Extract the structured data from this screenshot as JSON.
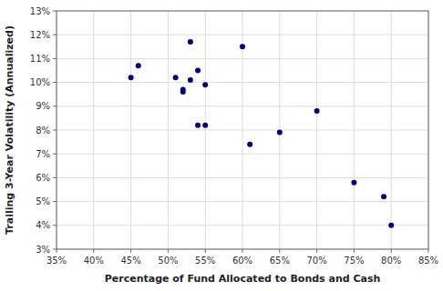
{
  "chart_data": {
    "type": "scatter",
    "xlabel": "Percentage of Fund Allocated to Bonds and Cash",
    "ylabel": "Trailing 3-Year Volatility (Annualized)",
    "color": "#000080",
    "x": [
      0.45,
      0.46,
      0.51,
      0.52,
      0.52,
      0.53,
      0.53,
      0.54,
      0.54,
      0.55,
      0.55,
      0.6,
      0.61,
      0.65,
      0.7,
      0.75,
      0.79,
      0.8
    ],
    "values": [
      0.102,
      0.107,
      0.102,
      0.096,
      0.097,
      0.101,
      0.117,
      0.105,
      0.082,
      0.082,
      0.099,
      0.115,
      0.074,
      0.079,
      0.088,
      0.058,
      0.052,
      0.04
    ],
    "xlim": [
      0.35,
      0.85
    ],
    "ylim": [
      0.03,
      0.13
    ],
    "xticks": [
      {
        "value": 0.35,
        "label": "35%"
      },
      {
        "value": 0.4,
        "label": "40%"
      },
      {
        "value": 0.45,
        "label": "45%"
      },
      {
        "value": 0.5,
        "label": "50%"
      },
      {
        "value": 0.55,
        "label": "55%"
      },
      {
        "value": 0.6,
        "label": "60%"
      },
      {
        "value": 0.65,
        "label": "65%"
      },
      {
        "value": 0.7,
        "label": "70%"
      },
      {
        "value": 0.75,
        "label": "75%"
      },
      {
        "value": 0.8,
        "label": "80%"
      },
      {
        "value": 0.85,
        "label": "85%"
      }
    ],
    "yticks": [
      {
        "value": 0.03,
        "label": "3%"
      },
      {
        "value": 0.04,
        "label": "4%"
      },
      {
        "value": 0.05,
        "label": "5%"
      },
      {
        "value": 0.06,
        "label": "6%"
      },
      {
        "value": 0.07,
        "label": "7%"
      },
      {
        "value": 0.08,
        "label": "8%"
      },
      {
        "value": 0.09,
        "label": "9%"
      },
      {
        "value": 0.1,
        "label": "10%"
      },
      {
        "value": 0.11,
        "label": "11%"
      },
      {
        "value": 0.12,
        "label": "12%"
      },
      {
        "value": 0.13,
        "label": "13%"
      }
    ],
    "grid": true
  }
}
